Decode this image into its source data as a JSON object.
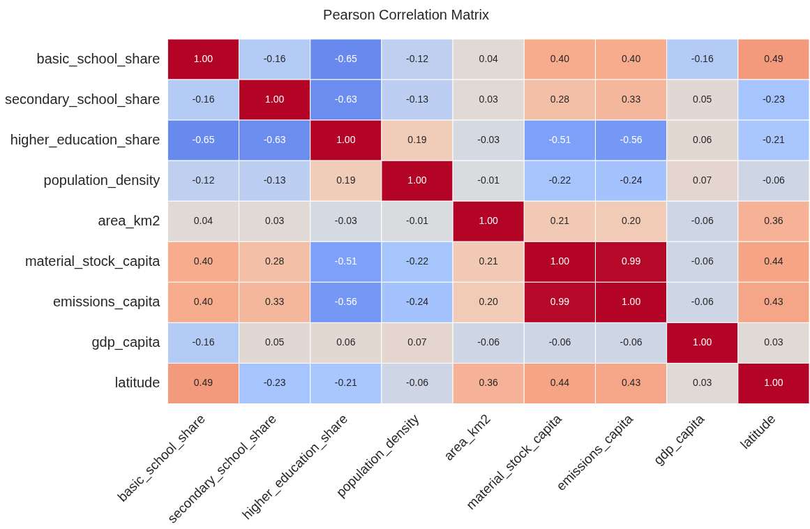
{
  "chart_data": {
    "type": "heatmap",
    "title": "Pearson Correlation Matrix",
    "categories": [
      "basic_school_share",
      "secondary_school_share",
      "higher_education_share",
      "population_density",
      "area_km2",
      "material_stock_capita",
      "emissions_capita",
      "gdp_capita",
      "latitude"
    ],
    "y_categories": [
      "basic_school_share",
      "secondary_school_share",
      "higher_education_share",
      "population_density",
      "area_km2",
      "material_stock_capita",
      "emissions_capita",
      "gdp_capita",
      "latitude"
    ],
    "cells": [
      [
        1.0,
        -0.16,
        -0.65,
        -0.12,
        0.04,
        0.4,
        0.4,
        -0.16,
        0.49
      ],
      [
        -0.16,
        1.0,
        -0.63,
        -0.13,
        0.03,
        0.28,
        0.33,
        0.05,
        -0.23
      ],
      [
        -0.65,
        -0.63,
        1.0,
        0.19,
        -0.03,
        -0.51,
        -0.56,
        0.06,
        -0.21
      ],
      [
        -0.12,
        -0.13,
        0.19,
        1.0,
        -0.01,
        -0.22,
        -0.24,
        0.07,
        -0.06
      ],
      [
        0.04,
        0.03,
        -0.03,
        -0.01,
        1.0,
        0.21,
        0.2,
        -0.06,
        0.36
      ],
      [
        0.4,
        0.28,
        -0.51,
        -0.22,
        0.21,
        1.0,
        0.99,
        -0.06,
        0.44
      ],
      [
        0.4,
        0.33,
        -0.56,
        -0.24,
        0.2,
        0.99,
        1.0,
        -0.06,
        0.43
      ],
      [
        -0.16,
        0.05,
        0.06,
        0.07,
        -0.06,
        -0.06,
        -0.06,
        1.0,
        0.03
      ],
      [
        0.49,
        -0.23,
        -0.21,
        -0.06,
        0.36,
        0.44,
        0.43,
        0.03,
        1.0
      ]
    ],
    "cell_labels": [
      [
        "1.00",
        "-0.16",
        "-0.65",
        "-0.12",
        "0.04",
        "0.40",
        "0.40",
        "-0.16",
        "0.49"
      ],
      [
        "-0.16",
        "1.00",
        "-0.63",
        "-0.13",
        "0.03",
        "0.28",
        "0.33",
        "0.05",
        "-0.23"
      ],
      [
        "-0.65",
        "-0.63",
        "1.00",
        "0.19",
        "-0.03",
        "-0.51",
        "-0.56",
        "0.06",
        "-0.21"
      ],
      [
        "-0.12",
        "-0.13",
        "0.19",
        "1.00",
        "-0.01",
        "-0.22",
        "-0.24",
        "0.07",
        "-0.06"
      ],
      [
        "0.04",
        "0.03",
        "-0.03",
        "-0.01",
        "1.00",
        "0.21",
        "0.20",
        "-0.06",
        "0.36"
      ],
      [
        "0.40",
        "0.28",
        "-0.51",
        "-0.22",
        "0.21",
        "1.00",
        "0.99",
        "-0.06",
        "0.44"
      ],
      [
        "0.40",
        "0.33",
        "-0.56",
        "-0.24",
        "0.20",
        "0.99",
        "1.00",
        "-0.06",
        "0.43"
      ],
      [
        "-0.16",
        "0.05",
        "0.06",
        "0.07",
        "-0.06",
        "-0.06",
        "-0.06",
        "1.00",
        "0.03"
      ],
      [
        "0.49",
        "-0.23",
        "-0.21",
        "-0.06",
        "0.36",
        "0.44",
        "0.43",
        "0.03",
        "1.00"
      ]
    ]
  }
}
